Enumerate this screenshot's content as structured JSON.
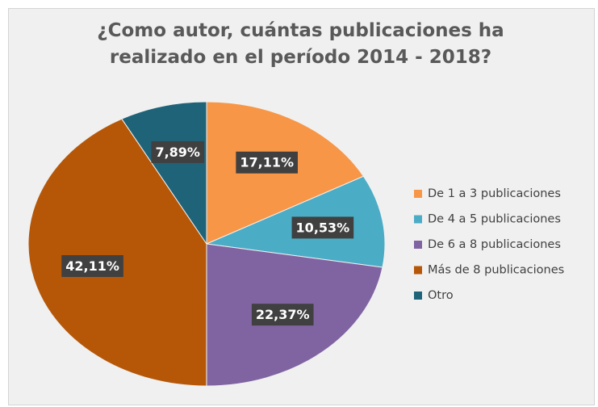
{
  "chart_data": {
    "type": "pie",
    "title": "¿Como autor, cuántas publicaciones ha realizado en el período 2014 - 2018?",
    "categories": [
      "De 1 a 3 publicaciones",
      "De 4 a 5 publicaciones",
      "De 6 a 8 publicaciones",
      "Más de 8 publicaciones",
      "Otro"
    ],
    "values": [
      17.11,
      10.53,
      22.37,
      42.11,
      7.89
    ],
    "value_labels": [
      "17,11%",
      "10,53%",
      "22,37%",
      "42,11%",
      "7,89%"
    ],
    "colors": [
      "#f79646",
      "#4bacc6",
      "#8064a2",
      "#b65708",
      "#1f6379"
    ],
    "legend": "right"
  }
}
